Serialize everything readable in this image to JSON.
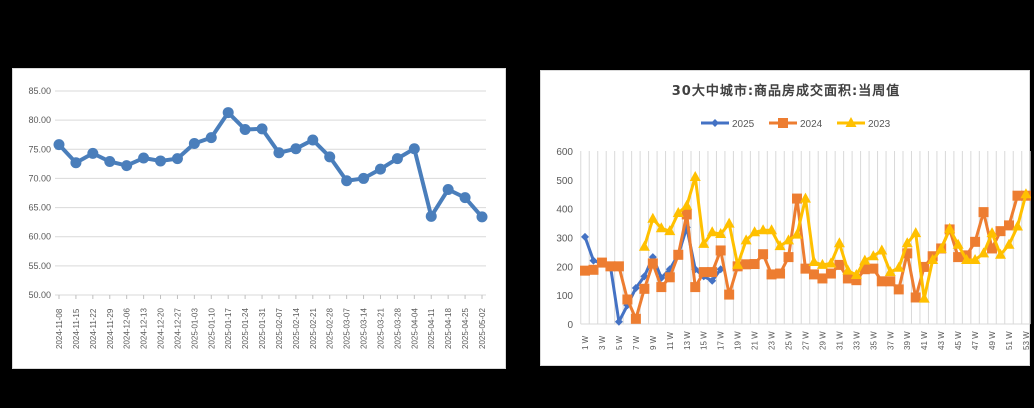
{
  "chart_data": [
    {
      "type": "line",
      "title": "",
      "xlabel": "",
      "ylabel": "",
      "ylim": [
        50,
        85
      ],
      "yticks": [
        "50.00",
        "55.00",
        "60.00",
        "65.00",
        "70.00",
        "75.00",
        "80.00",
        "85.00"
      ],
      "grid": true,
      "legend": null,
      "color": "#4a7ebb",
      "categories": [
        "2024-11-08",
        "2024-11-15",
        "2024-11-22",
        "2024-11-29",
        "2024-12-06",
        "2024-12-13",
        "2024-12-20",
        "2024-12-27",
        "2025-01-03",
        "2025-01-10",
        "2025-01-17",
        "2025-01-24",
        "2025-01-31",
        "2025-02-07",
        "2025-02-14",
        "2025-02-21",
        "2025-02-28",
        "2025-03-07",
        "2025-03-14",
        "2025-03-21",
        "2025-03-28",
        "2025-04-04",
        "2025-04-11",
        "2025-04-18",
        "2025-04-25",
        "2025-05-02"
      ],
      "values": [
        75.8,
        72.7,
        74.3,
        72.9,
        72.2,
        73.5,
        73.0,
        73.4,
        76.0,
        77.0,
        81.3,
        78.4,
        78.5,
        74.4,
        75.1,
        76.6,
        73.7,
        69.6,
        70.0,
        71.6,
        73.4,
        75.1,
        63.5,
        68.1,
        66.7,
        63.4
      ]
    },
    {
      "type": "line",
      "title": "30大中城市:商品房成交面积:当周值",
      "xlabel": "",
      "ylabel": "",
      "ylim": [
        0,
        600
      ],
      "yticks": [
        "0",
        "100",
        "200",
        "300",
        "400",
        "500",
        "600"
      ],
      "grid": "vertical",
      "legend": "top",
      "categories": [
        "1W",
        "2W",
        "3W",
        "4W",
        "5W",
        "6W",
        "7W",
        "8W",
        "9W",
        "10W",
        "11W",
        "12W",
        "13W",
        "14W",
        "15W",
        "16W",
        "17W",
        "18W",
        "19W",
        "20W",
        "21W",
        "22W",
        "23W",
        "24W",
        "25W",
        "26W",
        "27W",
        "28W",
        "29W",
        "30W",
        "31W",
        "32W",
        "33W",
        "34W",
        "35W",
        "36W",
        "37W",
        "38W",
        "39W",
        "40W",
        "41W",
        "42W",
        "43W",
        "44W",
        "45W",
        "46W",
        "47W",
        "48W",
        "49W",
        "50W",
        "51W",
        "52W",
        "53W"
      ],
      "xtick_labels": [
        "1W",
        "3W",
        "5W",
        "7W",
        "9W",
        "11W",
        "13W",
        "15W",
        "17W",
        "19W",
        "21W",
        "23W",
        "25W",
        "27W",
        "29W",
        "31W",
        "33W",
        "35W",
        "37W",
        "39W",
        "41W",
        "43W",
        "45W",
        "47W",
        "49W",
        "51W",
        "53W"
      ],
      "series": [
        {
          "name": "2025",
          "color": "#4472c4",
          "marker": "diamond",
          "values": [
            302,
            220,
            null,
            200,
            8,
            65,
            125,
            165,
            232,
            160,
            190,
            240,
            335,
            190,
            165,
            150,
            190
          ]
        },
        {
          "name": "2024",
          "color": "#ed7d31",
          "marker": "square",
          "values": [
            185,
            188,
            213,
            200,
            200,
            85,
            18,
            122,
            210,
            128,
            162,
            240,
            380,
            128,
            180,
            180,
            255,
            102,
            200,
            207,
            208,
            242,
            172,
            175,
            232,
            435,
            192,
            172,
            158,
            175,
            205,
            158,
            152,
            190,
            192,
            148,
            148,
            120,
            245,
            92,
            198,
            235,
            262,
            328,
            232,
            238,
            285,
            388,
            262,
            322,
            342,
            445,
            445
          ]
        },
        {
          "name": "2023",
          "color": "#ffc000",
          "marker": "triangle",
          "values": [
            null,
            null,
            null,
            null,
            null,
            null,
            null,
            268,
            365,
            332,
            322,
            385,
            410,
            510,
            278,
            318,
            312,
            348,
            205,
            290,
            318,
            325,
            325,
            270,
            290,
            310,
            435,
            215,
            205,
            210,
            280,
            185,
            170,
            220,
            235,
            255,
            180,
            195,
            280,
            315,
            88,
            222,
            260,
            330,
            275,
            222,
            222,
            245,
            315,
            240,
            275,
            338,
            450
          ]
        }
      ]
    }
  ]
}
